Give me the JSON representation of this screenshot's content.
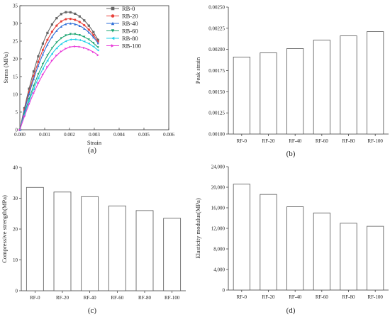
{
  "chart_data": [
    {
      "type": "line",
      "panel_label": "(a)",
      "xlabel": "Strain",
      "ylabel": "Stress (MPa)",
      "xlim": [
        0,
        0.006
      ],
      "ylim": [
        0,
        35
      ],
      "x_ticks": [
        "0.000",
        "0.001",
        "0.002",
        "0.003",
        "0.004",
        "0.005",
        "0.006"
      ],
      "y_ticks": [
        "0",
        "5",
        "10",
        "15",
        "20",
        "25",
        "30",
        "35"
      ],
      "legend_position": "top-right",
      "series": [
        {
          "name": "RB-0",
          "color": "#666666",
          "marker": "square",
          "peak_strain": 0.00192,
          "peak_stress": 33.2
        },
        {
          "name": "RB-20",
          "color": "#e8413a",
          "marker": "circle",
          "peak_strain": 0.00197,
          "peak_stress": 31.3
        },
        {
          "name": "RB-40",
          "color": "#2f6fd8",
          "marker": "triangle",
          "peak_strain": 0.00201,
          "peak_stress": 30.0
        },
        {
          "name": "RB-60",
          "color": "#1fa673",
          "marker": "dtri",
          "peak_strain": 0.00211,
          "peak_stress": 27.0
        },
        {
          "name": "RB-80",
          "color": "#22d0e8",
          "marker": "ltri",
          "peak_strain": 0.00216,
          "peak_stress": 25.5
        },
        {
          "name": "RB-100",
          "color": "#e83ad8",
          "marker": "rtri",
          "peak_strain": 0.00221,
          "peak_stress": 23.5
        }
      ],
      "end_strain": 0.00315
    },
    {
      "type": "bar",
      "panel_label": "(b)",
      "ylabel": "Peak strain",
      "categories": [
        "RF-0",
        "RF-20",
        "RF-40",
        "RF-60",
        "RF-80",
        "RF-100"
      ],
      "values": [
        0.00191,
        0.00196,
        0.00201,
        0.00211,
        0.00216,
        0.00221
      ],
      "ylim": [
        0.001,
        0.0025
      ],
      "y_ticks": [
        "0.00100",
        "0.00125",
        "0.00150",
        "0.00175",
        "0.00200",
        "0.00225",
        "0.00250"
      ]
    },
    {
      "type": "bar",
      "panel_label": "(c)",
      "ylabel": "Compressive strength(MPa)",
      "categories": [
        "RF-0",
        "RF-20",
        "RF-40",
        "RF-60",
        "RF-80",
        "RF-100"
      ],
      "values": [
        33.5,
        32.0,
        30.5,
        27.5,
        26.0,
        23.5
      ],
      "ylim": [
        0,
        40
      ],
      "y_ticks": [
        "0",
        "10",
        "20",
        "30",
        "40"
      ]
    },
    {
      "type": "bar",
      "panel_label": "(d)",
      "ylabel": "Elasticity modulus(MPa)",
      "categories": [
        "RF-0",
        "RF-20",
        "RF-40",
        "RF-60",
        "RF-80",
        "RF-100"
      ],
      "values": [
        20600,
        18600,
        16200,
        15000,
        13000,
        12400
      ],
      "ylim": [
        0,
        24000
      ],
      "y_ticks": [
        "0",
        "4,000",
        "8,000",
        "12,000",
        "16,000",
        "20,000",
        "24,000"
      ]
    }
  ]
}
